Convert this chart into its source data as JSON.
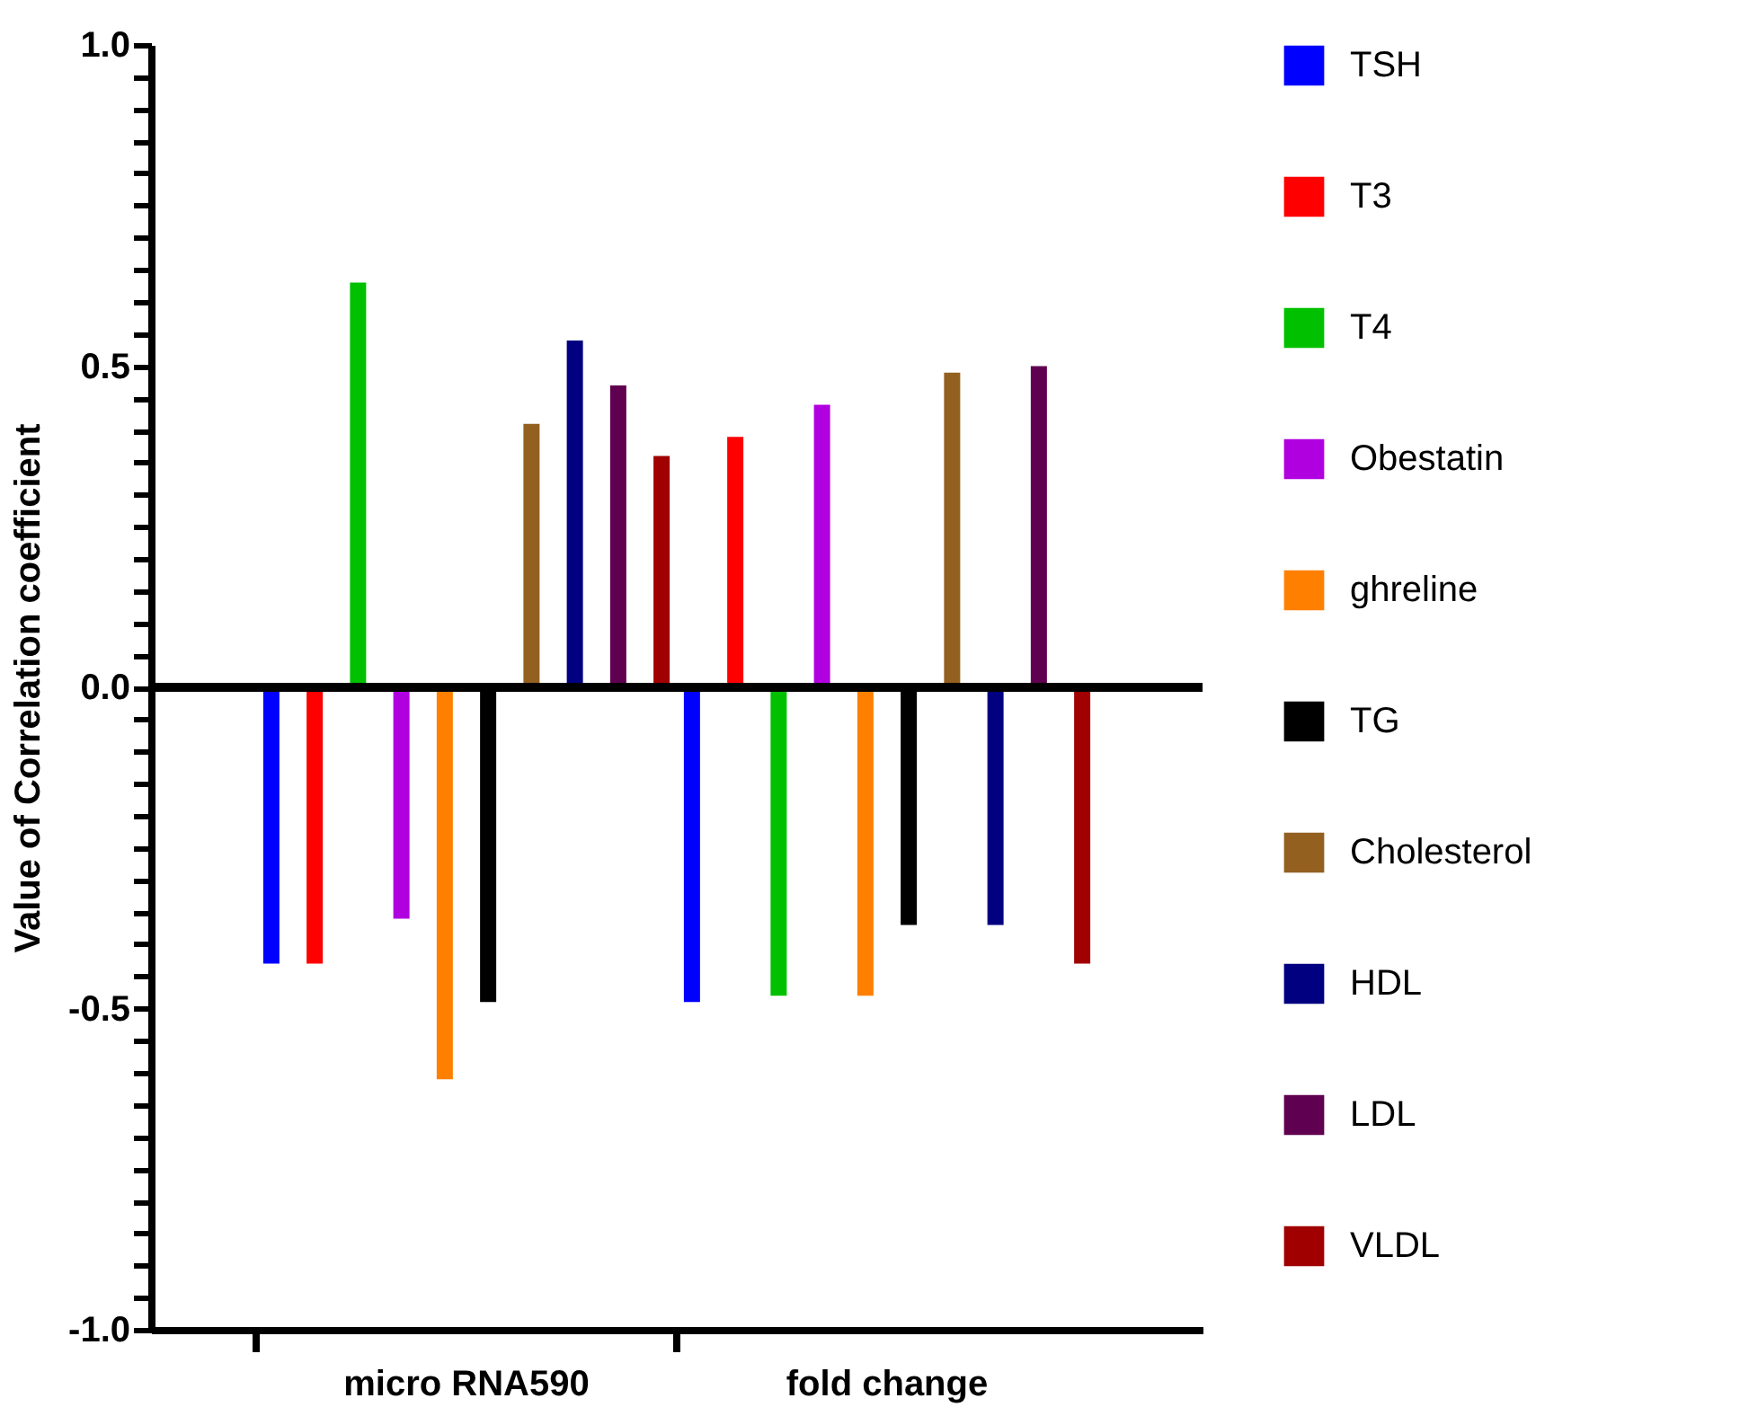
{
  "chart_data": {
    "type": "bar",
    "ylabel": "Value of Correlation coefficient",
    "categories": [
      "micro RNA590",
      "fold change"
    ],
    "series": [
      {
        "name": "TSH",
        "color": "#0000ff",
        "values": [
          -0.43,
          -0.49
        ]
      },
      {
        "name": "T3",
        "color": "#ff0000",
        "values": [
          -0.43,
          0.39
        ]
      },
      {
        "name": "T4",
        "color": "#00c000",
        "values": [
          0.63,
          -0.48
        ]
      },
      {
        "name": "Obestatin",
        "color": "#b000e0",
        "values": [
          -0.36,
          0.44
        ]
      },
      {
        "name": "ghreline",
        "color": "#ff8000",
        "values": [
          -0.61,
          -0.48
        ]
      },
      {
        "name": "TG",
        "color": "#000000",
        "values": [
          -0.49,
          -0.37
        ]
      },
      {
        "name": "Cholesterol",
        "color": "#936020",
        "values": [
          0.41,
          0.49
        ]
      },
      {
        "name": "HDL",
        "color": "#000080",
        "values": [
          0.54,
          -0.37
        ]
      },
      {
        "name": "LDL",
        "color": "#600050",
        "values": [
          0.47,
          0.5
        ]
      },
      {
        "name": "VLDL",
        "color": "#a00000",
        "values": [
          0.36,
          -0.43
        ]
      }
    ],
    "ylim": [
      -1.0,
      1.0
    ],
    "yticks": [
      {
        "value": -1.0,
        "label": "-1.0"
      },
      {
        "value": -0.95,
        "label": null
      },
      {
        "value": -0.9,
        "label": null
      },
      {
        "value": -0.85,
        "label": null
      },
      {
        "value": -0.8,
        "label": null
      },
      {
        "value": -0.75,
        "label": null
      },
      {
        "value": -0.7,
        "label": null
      },
      {
        "value": -0.65,
        "label": null
      },
      {
        "value": -0.6,
        "label": null
      },
      {
        "value": -0.55,
        "label": null
      },
      {
        "value": -0.5,
        "label": "-0.5"
      },
      {
        "value": -0.45,
        "label": null
      },
      {
        "value": -0.4,
        "label": null
      },
      {
        "value": -0.35,
        "label": null
      },
      {
        "value": -0.3,
        "label": null
      },
      {
        "value": -0.25,
        "label": null
      },
      {
        "value": -0.2,
        "label": null
      },
      {
        "value": -0.15,
        "label": null
      },
      {
        "value": -0.1,
        "label": null
      },
      {
        "value": -0.05,
        "label": null
      },
      {
        "value": 0.0,
        "label": "0.0"
      },
      {
        "value": 0.05,
        "label": null
      },
      {
        "value": 0.1,
        "label": null
      },
      {
        "value": 0.15,
        "label": null
      },
      {
        "value": 0.2,
        "label": null
      },
      {
        "value": 0.25,
        "label": null
      },
      {
        "value": 0.3,
        "label": null
      },
      {
        "value": 0.35,
        "label": null
      },
      {
        "value": 0.4,
        "label": null
      },
      {
        "value": 0.45,
        "label": null
      },
      {
        "value": 0.5,
        "label": "0.5"
      },
      {
        "value": 0.55,
        "label": null
      },
      {
        "value": 0.6,
        "label": null
      },
      {
        "value": 0.65,
        "label": null
      },
      {
        "value": 0.7,
        "label": null
      },
      {
        "value": 0.75,
        "label": null
      },
      {
        "value": 0.8,
        "label": null
      },
      {
        "value": 0.85,
        "label": null
      },
      {
        "value": 0.9,
        "label": null
      },
      {
        "value": 0.95,
        "label": null
      },
      {
        "value": 1.0,
        "label": "1.0"
      }
    ],
    "ref_lines": [
      {
        "axis": "y",
        "value": 0.0,
        "color": "#000000"
      }
    ],
    "grid": false,
    "legend": "right"
  }
}
